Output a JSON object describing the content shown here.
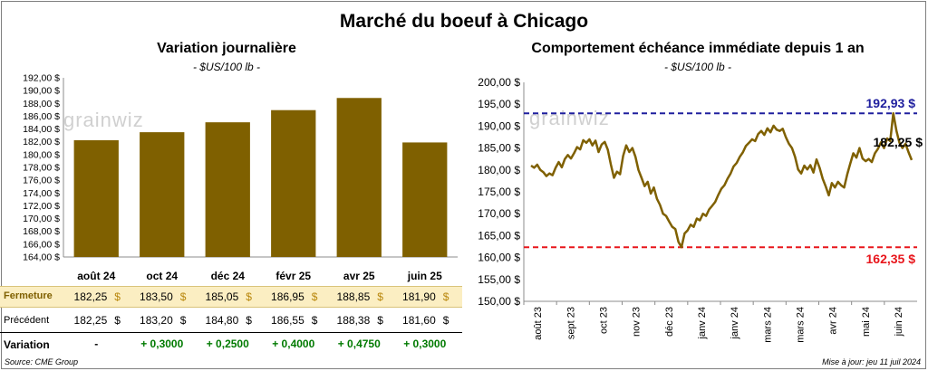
{
  "title": "Marché du boeuf à Chicago",
  "left": {
    "title": "Variation  journalière",
    "subtitle": "- $US/100 lb -"
  },
  "right": {
    "title": "Comportement  échéance immédiate depuis 1 an",
    "subtitle": "- $US/100 lb -"
  },
  "table": {
    "row_labels": {
      "close": "Fermeture",
      "previous": "Précédent",
      "variation": "Variation"
    },
    "unit": "$",
    "categories": [
      "août 24",
      "oct 24",
      "déc 24",
      "févr 25",
      "avr 25",
      "juin 25"
    ],
    "close": [
      "182,25",
      "183,50",
      "185,05",
      "186,95",
      "188,85",
      "181,90"
    ],
    "previous": [
      "182,25",
      "183,20",
      "184,80",
      "186,55",
      "188,38",
      "181,60"
    ],
    "variation": [
      "-",
      "+ 0,3000",
      "+ 0,2500",
      "+ 0,4000",
      "+ 0,4750",
      "+ 0,3000"
    ]
  },
  "footer": {
    "source": "Source: CME Group",
    "updated": "Mise à jour: jeu 11 juil 2024"
  },
  "watermark": "grainwiz",
  "colors": {
    "bar": "#7f6000",
    "line": "#7f6000",
    "high": "#1f1f9e",
    "low": "#e8161c",
    "close_band": "#fbeec2"
  },
  "chart_data": [
    {
      "type": "bar",
      "categories": [
        "août 24",
        "oct 24",
        "déc 24",
        "févr 25",
        "avr 25",
        "juin 25"
      ],
      "values": [
        182.25,
        183.5,
        185.05,
        186.95,
        188.85,
        181.9
      ],
      "ylim": [
        164,
        192
      ],
      "ytick_step": 2,
      "ytick_labels": [
        "164,00 $",
        "166,00 $",
        "168,00 $",
        "170,00 $",
        "172,00 $",
        "174,00 $",
        "176,00 $",
        "178,00 $",
        "180,00 $",
        "182,00 $",
        "184,00 $",
        "186,00 $",
        "188,00 $",
        "190,00 $",
        "192,00 $"
      ]
    },
    {
      "type": "line",
      "ylim": [
        150,
        200
      ],
      "ytick_step": 5,
      "ytick_labels": [
        "150,00 $",
        "155,00 $",
        "160,00 $",
        "165,00 $",
        "170,00 $",
        "175,00 $",
        "180,00 $",
        "185,00 $",
        "190,00 $",
        "195,00 $",
        "200,00 $"
      ],
      "xtick_labels": [
        "août 23",
        "sept 23",
        "oct 23",
        "nov 23",
        "déc 23",
        "janv 24",
        "janv 24",
        "mars 24",
        "mars 24",
        "avr 24",
        "mai 24",
        "juin 24"
      ],
      "values": [
        181.0,
        180.5,
        181.2,
        180.0,
        179.5,
        178.6,
        179.2,
        178.8,
        180.5,
        181.8,
        180.6,
        182.5,
        183.4,
        182.6,
        183.8,
        185.2,
        184.7,
        186.8,
        186.2,
        187.0,
        185.6,
        186.7,
        184.1,
        185.8,
        186.4,
        184.6,
        181.2,
        178.2,
        179.6,
        179.0,
        183.2,
        185.6,
        184.1,
        185.0,
        183.0,
        180.0,
        178.2,
        176.3,
        177.3,
        174.6,
        176.0,
        173.4,
        172.0,
        170.0,
        169.5,
        168.2,
        167.0,
        166.5,
        163.6,
        162.35,
        165.5,
        166.2,
        167.5,
        167.0,
        168.9,
        168.5,
        170.0,
        169.5,
        171.0,
        171.8,
        172.7,
        174.3,
        175.7,
        176.5,
        178.0,
        179.2,
        180.8,
        181.6,
        183.0,
        184.0,
        185.5,
        186.2,
        187.0,
        186.6,
        188.2,
        188.9,
        188.0,
        189.5,
        188.6,
        190.1,
        189.2,
        188.9,
        189.4,
        187.5,
        186.0,
        185.0,
        183.0,
        180.1,
        179.2,
        181.0,
        180.1,
        181.1,
        179.4,
        182.4,
        180.5,
        178.0,
        176.2,
        174.2,
        177.0,
        176.0,
        177.3,
        176.5,
        176.0,
        179.0,
        181.5,
        183.8,
        182.8,
        185.0,
        182.6,
        182.0,
        182.5,
        181.8,
        183.8,
        184.8,
        186.3,
        185.0,
        187.2,
        186.6,
        192.93,
        189.0,
        186.2,
        185.0,
        186.0,
        184.0,
        182.25
      ],
      "high": {
        "value": 192.93,
        "label": "192,93 $"
      },
      "low": {
        "value": 162.35,
        "label": "162,35 $"
      },
      "last": {
        "value": 182.25,
        "label": "182,25 $"
      }
    }
  ]
}
